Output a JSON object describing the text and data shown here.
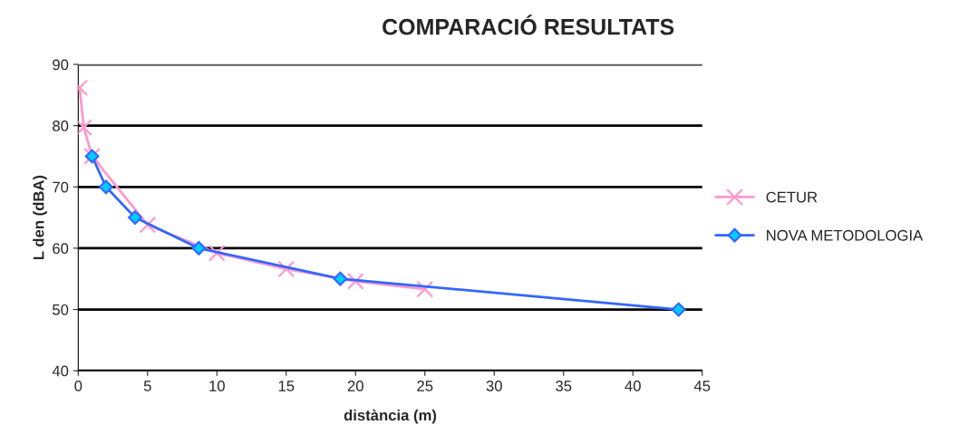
{
  "chart_data": {
    "type": "line",
    "title": "COMPARACIÓ RESULTATS",
    "xlabel": "distància (m)",
    "ylabel": "L den (dBA)",
    "xlim": [
      0,
      45
    ],
    "xticks": [
      0,
      5,
      10,
      15,
      20,
      25,
      30,
      35,
      40,
      45
    ],
    "ylim": [
      40,
      90
    ],
    "yticks": [
      40,
      50,
      60,
      70,
      80,
      90
    ],
    "grid": "y",
    "legend": "right",
    "line_style": "solid",
    "series": [
      {
        "name": "CETUR",
        "color": "#ff99cc",
        "marker": "cross",
        "x": [
          0.1,
          0.4,
          1,
          5,
          10,
          15,
          20,
          25
        ],
        "values": [
          86.2,
          79.7,
          75.0,
          63.8,
          59.2,
          56.6,
          54.6,
          53.3
        ]
      },
      {
        "name": "NOVA METODOLOGIA",
        "color": "#3366ff",
        "marker": "diamond",
        "x": [
          1,
          2,
          4.1,
          8.7,
          18.9,
          43.3
        ],
        "values": [
          75,
          70,
          65,
          60,
          55,
          50
        ]
      }
    ]
  }
}
